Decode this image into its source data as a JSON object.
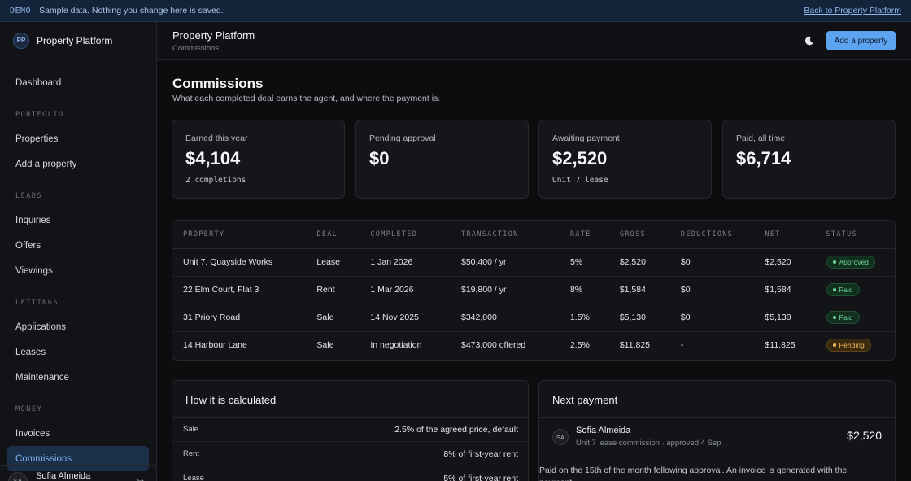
{
  "banner": {
    "tag": "DEMO",
    "message": "Sample data. Nothing you change here is saved.",
    "back_link": "Back to Property Platform"
  },
  "sidebar": {
    "logo": "PP",
    "brand": "Property Platform",
    "items": [
      {
        "type": "item",
        "label": "Dashboard"
      },
      {
        "type": "section",
        "label": "PORTFOLIO"
      },
      {
        "type": "item",
        "label": "Properties"
      },
      {
        "type": "item",
        "label": "Add a property"
      },
      {
        "type": "section",
        "label": "LEADS"
      },
      {
        "type": "item",
        "label": "Inquiries"
      },
      {
        "type": "item",
        "label": "Offers"
      },
      {
        "type": "item",
        "label": "Viewings"
      },
      {
        "type": "section",
        "label": "LETTINGS"
      },
      {
        "type": "item",
        "label": "Applications"
      },
      {
        "type": "item",
        "label": "Leases"
      },
      {
        "type": "item",
        "label": "Maintenance"
      },
      {
        "type": "section",
        "label": "MONEY"
      },
      {
        "type": "item",
        "label": "Invoices"
      },
      {
        "type": "item",
        "label": "Commissions",
        "active": true
      }
    ],
    "user": {
      "initials": "SA",
      "name": "Sofia Almeida"
    }
  },
  "topbar": {
    "title": "Property Platform",
    "breadcrumb": "Commissions",
    "theme_icon": "moon-icon",
    "add_button": "Add a property"
  },
  "page": {
    "title": "Commissions",
    "subtitle": "What each completed deal earns the agent, and where the payment is."
  },
  "stats": [
    {
      "label": "Earned this year",
      "value": "$4,104",
      "note": "2 completions"
    },
    {
      "label": "Pending approval",
      "value": "$0",
      "note": ""
    },
    {
      "label": "Awaiting payment",
      "value": "$2,520",
      "note": "Unit 7 lease"
    },
    {
      "label": "Paid, all time",
      "value": "$6,714",
      "note": ""
    }
  ],
  "table": {
    "headers": [
      "PROPERTY",
      "DEAL",
      "COMPLETED",
      "TRANSACTION",
      "RATE",
      "GROSS",
      "DEDUCTIONS",
      "NET",
      "STATUS"
    ],
    "rows": [
      {
        "property": "Unit 7, Quayside Works",
        "deal": "Lease",
        "completed": "1 Jan 2026",
        "transaction": "$50,400 / yr",
        "rate": "5%",
        "gross": "$2,520",
        "deductions": "$0",
        "net": "$2,520",
        "status": "Approved",
        "status_color": "green"
      },
      {
        "property": "22 Elm Court, Flat 3",
        "deal": "Rent",
        "completed": "1 Mar 2026",
        "transaction": "$19,800 / yr",
        "rate": "8%",
        "gross": "$1,584",
        "deductions": "$0",
        "net": "$1,584",
        "status": "Paid",
        "status_color": "green"
      },
      {
        "property": "31 Priory Road",
        "deal": "Sale",
        "completed": "14 Nov 2025",
        "transaction": "$342,000",
        "rate": "1.5%",
        "gross": "$5,130",
        "deductions": "$0",
        "net": "$5,130",
        "status": "Paid",
        "status_color": "green"
      },
      {
        "property": "14 Harbour Lane",
        "deal": "Sale",
        "completed": "In negotiation",
        "transaction": "$473,000 offered",
        "rate": "2.5%",
        "gross": "$11,825",
        "deductions": "-",
        "net": "$11,825",
        "status": "Pending",
        "status_color": "amber"
      }
    ]
  },
  "calc": {
    "title": "How it is calculated",
    "rows": [
      {
        "k": "Sale",
        "v": "2.5% of the agreed price, default"
      },
      {
        "k": "Rent",
        "v": "8% of first-year rent"
      },
      {
        "k": "Lease",
        "v": "5% of first-year rent"
      }
    ]
  },
  "next_payment": {
    "title": "Next payment",
    "initials": "SA",
    "name": "Sofia Almeida",
    "detail": "Unit 7 lease commission · approved 4 Sep",
    "amount": "$2,520",
    "note": "Paid on the 15th of the month following approval. An invoice is generated with the payment."
  }
}
